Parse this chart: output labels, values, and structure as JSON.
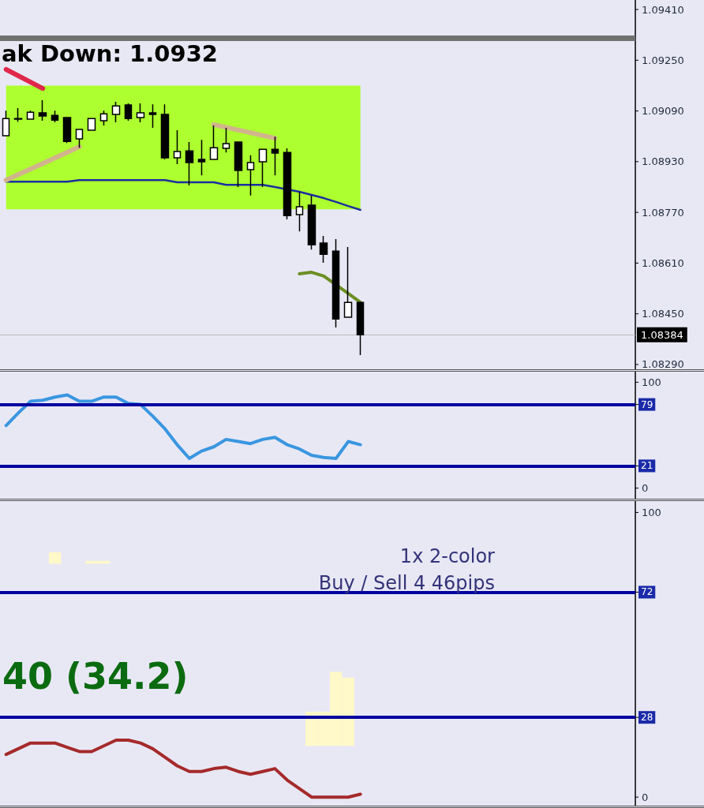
{
  "chart_data": [
    {
      "type": "candlestick",
      "categories": [
        null,
        null,
        null,
        null,
        null,
        null,
        null,
        null,
        null,
        null,
        null,
        null,
        null,
        null,
        null,
        null,
        null,
        null,
        null,
        null,
        null,
        null,
        null,
        null,
        null,
        null,
        null,
        null,
        null,
        null,
        null,
        null,
        null,
        null,
        null,
        null,
        null,
        null,
        null,
        null,
        null,
        null,
        null,
        null,
        null,
        null,
        null,
        null,
        null,
        null,
        null,
        null
      ],
      "ohlc": [
        [
          1.09012,
          1.09091,
          1.09012,
          1.09066
        ],
        [
          1.09064,
          1.09099,
          1.09056,
          1.09066
        ],
        [
          1.09064,
          1.09091,
          1.09064,
          1.09086
        ],
        [
          1.09084,
          1.09124,
          1.09059,
          1.09074
        ],
        [
          1.09076,
          1.09091,
          1.09054,
          1.09061
        ],
        [
          1.09069,
          1.09071,
          1.08989,
          1.08994
        ],
        [
          1.09002,
          1.09032,
          1.08974,
          1.09032
        ],
        [
          1.09029,
          1.09066,
          1.09029,
          1.09066
        ],
        [
          1.09059,
          1.09091,
          1.09044,
          1.09081
        ],
        [
          1.09079,
          1.09119,
          1.09054,
          1.09106
        ],
        [
          1.09109,
          1.09114,
          1.09059,
          1.09066
        ],
        [
          1.09069,
          1.09114,
          1.09054,
          1.09084
        ],
        [
          1.09084,
          1.09111,
          1.09037,
          1.09079
        ],
        [
          1.09079,
          1.09111,
          1.08937,
          1.08942
        ],
        [
          1.08942,
          1.09029,
          1.08922,
          1.08962
        ],
        [
          1.08964,
          1.08992,
          1.08855,
          1.08927
        ],
        [
          1.08937,
          1.08999,
          1.08887,
          1.0893
        ],
        [
          1.08937,
          1.09044,
          1.08937,
          1.08974
        ],
        [
          1.08972,
          1.09037,
          1.08959,
          1.08987
        ],
        [
          1.08992,
          1.08992,
          1.0885,
          1.08902
        ],
        [
          1.08905,
          1.0895,
          1.08823,
          1.08927
        ],
        [
          1.0893,
          1.08969,
          1.0885,
          1.08969
        ],
        [
          1.08969,
          1.09009,
          1.08887,
          1.08957
        ],
        [
          1.08959,
          1.08972,
          1.08748,
          1.0876
        ],
        [
          1.08763,
          1.08835,
          1.0871,
          1.08788
        ],
        [
          1.08793,
          1.08823,
          1.08653,
          1.08668
        ],
        [
          1.08673,
          1.08696,
          1.08611,
          1.08638
        ],
        [
          1.08648,
          1.08686,
          1.08407,
          1.08434
        ],
        [
          1.08439,
          1.08661,
          1.08439,
          1.08486
        ],
        [
          1.08486,
          1.08486,
          1.0832,
          1.08384
        ],
        null,
        null,
        null,
        null,
        null,
        null,
        null,
        null,
        null,
        null,
        null,
        null,
        null,
        null,
        null,
        null,
        null,
        null,
        null,
        null,
        null,
        null
      ],
      "series": [
        {
          "type": "line",
          "color": "#1c2fa0",
          "values": [
            1.08867,
            1.08867,
            1.08867,
            1.08867,
            1.08867,
            1.08867,
            1.08872,
            1.08872,
            1.08872,
            1.08872,
            1.08872,
            1.08872,
            1.08872,
            1.08872,
            1.08865,
            1.08865,
            1.08865,
            1.08865,
            1.08857,
            1.08857,
            1.08857,
            1.08857,
            1.0885,
            null,
            1.08835,
            1.08825,
            1.08815,
            1.08803,
            1.0879,
            1.08778,
            null,
            null,
            null,
            null,
            null,
            null,
            null,
            null,
            null,
            null,
            null,
            null,
            null,
            null,
            null,
            null,
            null,
            null,
            null,
            null,
            null,
            null
          ]
        },
        {
          "type": "line",
          "color": "#e0284a",
          "values": [
            1.09221,
            null,
            null,
            1.09161,
            null,
            null,
            null,
            null,
            null,
            null,
            null,
            null,
            null,
            null,
            null,
            null,
            null,
            null,
            null,
            null,
            null,
            null,
            null,
            null,
            null,
            null,
            null,
            null,
            null,
            null,
            null,
            null,
            null,
            null,
            null,
            null,
            null,
            null,
            null,
            null,
            null,
            null,
            null,
            null,
            null,
            null,
            null,
            null,
            null,
            null,
            null,
            null
          ]
        },
        {
          "type": "line",
          "color": "#d2b48c",
          "values": [
            1.08872,
            null,
            null,
            null,
            null,
            null,
            1.08977,
            null,
            null,
            null,
            null,
            null,
            null,
            null,
            null,
            null,
            null,
            null,
            null,
            null,
            null,
            null,
            null,
            null,
            null,
            null,
            null,
            null,
            null,
            null,
            null,
            null,
            null,
            null,
            null,
            null,
            null,
            null,
            null,
            null,
            null,
            null,
            null,
            null,
            null,
            null,
            null,
            null,
            null,
            null,
            null,
            null
          ]
        },
        {
          "type": "line",
          "color": "#d2b48c",
          "values": [
            null,
            null,
            null,
            null,
            null,
            null,
            null,
            null,
            null,
            null,
            null,
            null,
            null,
            null,
            null,
            null,
            null,
            1.09047,
            null,
            null,
            null,
            null,
            1.09004,
            null,
            null,
            null,
            null,
            null,
            null,
            null,
            null,
            null,
            null,
            null,
            null,
            null,
            null,
            null,
            null,
            null,
            null,
            null,
            null,
            null,
            null,
            null,
            null,
            null,
            null,
            null,
            null,
            null
          ]
        },
        {
          "type": "line",
          "color": "#6b8e23",
          "values": [
            null,
            null,
            null,
            null,
            null,
            null,
            null,
            null,
            null,
            null,
            null,
            null,
            null,
            null,
            null,
            null,
            null,
            null,
            null,
            null,
            null,
            null,
            null,
            null,
            1.08576,
            1.08581,
            1.08569,
            null,
            1.08514,
            1.08486,
            null,
            null,
            null,
            null,
            null,
            null,
            null,
            null,
            null,
            null,
            null,
            null,
            null,
            null,
            null,
            null,
            null,
            null,
            null,
            null,
            null,
            null
          ]
        }
      ],
      "ylim": [
        1.08275,
        1.0944
      ],
      "yticks": [
        {
          "value": 1.0941,
          "label": "1.09410"
        },
        {
          "value": 1.0925,
          "label": "1.09250"
        },
        {
          "value": 1.0909,
          "label": "1.09090"
        },
        {
          "value": 1.0893,
          "label": "1.08930"
        },
        {
          "value": 1.0877,
          "label": "1.08770"
        },
        {
          "value": 1.0861,
          "label": "1.08610"
        },
        {
          "value": 1.0845,
          "label": "1.08450"
        },
        {
          "value": 1.0829,
          "label": "1.08290"
        }
      ],
      "bands": [
        {
          "axis": "y",
          "from": 1.0878,
          "to": 1.0917,
          "color": "#adff2f"
        }
      ],
      "ref_lines": [
        {
          "axis": "y",
          "value": 1.0932,
          "label": "ak Down: 1.0932",
          "color": "#707070"
        },
        {
          "axis": "y",
          "value": 1.08384,
          "label": "1.08384",
          "color": "#b8b8b8"
        }
      ],
      "tick_labels": "y"
    },
    {
      "type": "line",
      "categories": [
        null,
        null,
        null,
        null,
        null,
        null,
        null,
        null,
        null,
        null,
        null,
        null,
        null,
        null,
        null,
        null,
        null,
        null,
        null,
        null,
        null,
        null,
        null,
        null,
        null,
        null,
        null,
        null,
        null,
        null,
        null,
        null,
        null,
        null,
        null,
        null,
        null,
        null,
        null,
        null,
        null,
        null,
        null,
        null,
        null,
        null,
        null,
        null,
        null,
        null,
        null,
        null
      ],
      "series": [
        {
          "color": "#3a96e0",
          "values": [
            59,
            71,
            82,
            83,
            86,
            88,
            82,
            82,
            86,
            86,
            80,
            79,
            68,
            56,
            41,
            28,
            35,
            39,
            46,
            44,
            42,
            46,
            48,
            41,
            37,
            31,
            29,
            28,
            44,
            41,
            null,
            null,
            null,
            null,
            null,
            null,
            null,
            null,
            null,
            null,
            null,
            null,
            null,
            null,
            null,
            null,
            null,
            null,
            null,
            null,
            null,
            null
          ]
        }
      ],
      "ylim": [
        -10,
        110
      ],
      "yticks": [
        0,
        21,
        79,
        100
      ],
      "ref_lines": [
        {
          "axis": "y",
          "value": 79,
          "color": "#0000a0"
        },
        {
          "axis": "y",
          "value": 21,
          "color": "#0000a0"
        }
      ],
      "tick_labels": "y"
    },
    {
      "type": "line",
      "categories": [
        null,
        null,
        null,
        null,
        null,
        null,
        null,
        null,
        null,
        null,
        null,
        null,
        null,
        null,
        null,
        null,
        null,
        null,
        null,
        null,
        null,
        null,
        null,
        null,
        null,
        null,
        null,
        null,
        null,
        null,
        null,
        null,
        null,
        null,
        null,
        null,
        null,
        null,
        null,
        null,
        null,
        null,
        null,
        null,
        null,
        null,
        null,
        null,
        null,
        null,
        null,
        null
      ],
      "series": [
        {
          "type": "bar",
          "color": "#fff8c8",
          "base": [
            null,
            null,
            null,
            null,
            82,
            null,
            null,
            82,
            82,
            null,
            null,
            null,
            null,
            null,
            null,
            null,
            null,
            null,
            null,
            null,
            null,
            null,
            null,
            null,
            null,
            18,
            18,
            18,
            18,
            null,
            null,
            null,
            null,
            null,
            null,
            null,
            null,
            null,
            null,
            null,
            null,
            null,
            null,
            null,
            null,
            null,
            null,
            null,
            null,
            null,
            null,
            null
          ],
          "values": [
            null,
            null,
            null,
            null,
            4,
            null,
            null,
            1,
            1,
            null,
            null,
            null,
            null,
            null,
            null,
            null,
            null,
            null,
            null,
            null,
            null,
            null,
            null,
            null,
            null,
            12,
            12,
            26,
            24,
            null,
            null,
            null,
            null,
            null,
            null,
            null,
            null,
            null,
            null,
            null,
            null,
            null,
            null,
            null,
            null,
            null,
            null,
            null,
            null,
            null,
            null,
            null
          ]
        },
        {
          "type": "line",
          "color": "#a52a2a",
          "values": [
            15,
            17,
            19,
            19,
            19,
            17.5,
            16,
            16,
            18,
            20,
            20,
            19,
            17,
            14,
            11,
            9,
            9,
            10,
            10.5,
            9,
            8,
            9,
            10,
            6,
            3,
            0,
            0,
            0,
            0,
            1,
            null,
            null,
            null,
            null,
            null,
            null,
            null,
            null,
            null,
            null,
            null,
            null,
            null,
            null,
            null,
            null,
            null,
            null,
            null,
            null,
            null,
            null
          ]
        }
      ],
      "ylim": [
        -3,
        104
      ],
      "yticks": [
        0,
        28,
        72,
        100
      ],
      "ref_lines": [
        {
          "axis": "y",
          "value": 72,
          "color": "#0000a0"
        },
        {
          "axis": "y",
          "value": 28,
          "color": "#0000a0"
        }
      ],
      "annotations": [
        "40 (34.2)",
        "1x 2-color",
        "Buy / Sell 4 46pips"
      ],
      "tick_labels": "y"
    }
  ]
}
